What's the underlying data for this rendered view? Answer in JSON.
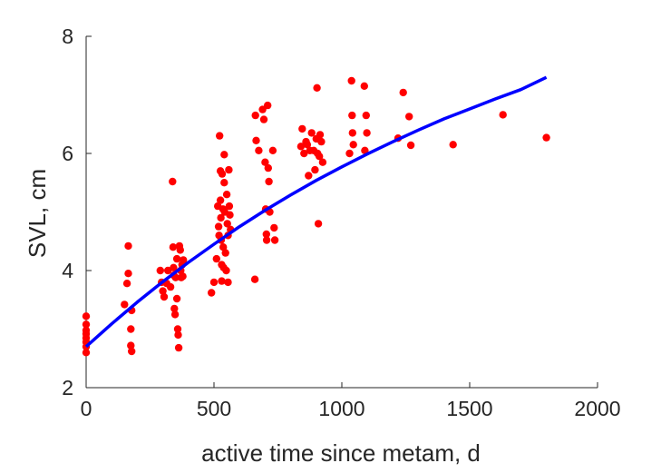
{
  "chart_data": {
    "type": "scatter",
    "xlabel": "active time since metam, d",
    "ylabel": "SVL, cm",
    "xlim": [
      0,
      2000
    ],
    "ylim": [
      2,
      8
    ],
    "xticks": [
      0,
      500,
      1000,
      1500,
      2000
    ],
    "yticks": [
      2,
      4,
      6,
      8
    ],
    "grid": false,
    "legend": "none",
    "colors": {
      "points": "#ff0000",
      "fit": "#0000ff",
      "axes": "#262626"
    },
    "series": [
      {
        "type": "scatter",
        "points": [
          [
            0,
            3.22
          ],
          [
            0,
            3.08
          ],
          [
            0,
            2.98
          ],
          [
            0,
            2.92
          ],
          [
            0,
            2.85
          ],
          [
            0,
            2.78
          ],
          [
            0,
            2.7
          ],
          [
            0,
            2.6
          ],
          [
            150,
            3.42
          ],
          [
            160,
            3.78
          ],
          [
            165,
            3.95
          ],
          [
            165,
            4.42
          ],
          [
            178,
            3.32
          ],
          [
            175,
            3.0
          ],
          [
            175,
            2.72
          ],
          [
            178,
            2.62
          ],
          [
            290,
            4.0
          ],
          [
            295,
            3.8
          ],
          [
            300,
            3.65
          ],
          [
            305,
            3.55
          ],
          [
            315,
            3.78
          ],
          [
            320,
            4.0
          ],
          [
            330,
            3.72
          ],
          [
            338,
            5.52
          ],
          [
            340,
            4.4
          ],
          [
            342,
            4.05
          ],
          [
            343,
            3.92
          ],
          [
            345,
            3.35
          ],
          [
            348,
            3.25
          ],
          [
            350,
            3.88
          ],
          [
            355,
            4.2
          ],
          [
            355,
            3.52
          ],
          [
            358,
            3.0
          ],
          [
            360,
            2.9
          ],
          [
            362,
            2.68
          ],
          [
            365,
            4.42
          ],
          [
            368,
            4.35
          ],
          [
            370,
            4.0
          ],
          [
            372,
            3.88
          ],
          [
            375,
            4.1
          ],
          [
            378,
            3.9
          ],
          [
            380,
            4.18
          ],
          [
            490,
            3.62
          ],
          [
            500,
            3.8
          ],
          [
            510,
            4.2
          ],
          [
            515,
            5.1
          ],
          [
            518,
            4.75
          ],
          [
            520,
            4.6
          ],
          [
            522,
            6.3
          ],
          [
            525,
            5.7
          ],
          [
            525,
            5.2
          ],
          [
            527,
            4.9
          ],
          [
            528,
            4.52
          ],
          [
            530,
            4.1
          ],
          [
            530,
            3.82
          ],
          [
            532,
            5.65
          ],
          [
            535,
            5.05
          ],
          [
            536,
            4.4
          ],
          [
            538,
            4.05
          ],
          [
            540,
            5.98
          ],
          [
            540,
            5.5
          ],
          [
            542,
            5.0
          ],
          [
            545,
            4.3
          ],
          [
            548,
            4.0
          ],
          [
            550,
            5.3
          ],
          [
            552,
            4.8
          ],
          [
            555,
            4.6
          ],
          [
            555,
            3.8
          ],
          [
            558,
            5.72
          ],
          [
            560,
            5.1
          ],
          [
            562,
            4.95
          ],
          [
            565,
            4.7
          ],
          [
            660,
            3.85
          ],
          [
            662,
            6.65
          ],
          [
            665,
            6.22
          ],
          [
            675,
            6.05
          ],
          [
            690,
            6.75
          ],
          [
            695,
            6.58
          ],
          [
            700,
            5.85
          ],
          [
            702,
            5.05
          ],
          [
            705,
            4.62
          ],
          [
            706,
            4.52
          ],
          [
            710,
            6.82
          ],
          [
            712,
            5.75
          ],
          [
            715,
            5.52
          ],
          [
            718,
            5.0
          ],
          [
            730,
            6.05
          ],
          [
            735,
            4.73
          ],
          [
            738,
            4.52
          ],
          [
            840,
            6.12
          ],
          [
            845,
            6.42
          ],
          [
            852,
            6.0
          ],
          [
            860,
            6.2
          ],
          [
            865,
            6.15
          ],
          [
            870,
            5.62
          ],
          [
            875,
            6.05
          ],
          [
            882,
            6.35
          ],
          [
            890,
            6.05
          ],
          [
            895,
            5.72
          ],
          [
            900,
            6.25
          ],
          [
            903,
            7.12
          ],
          [
            905,
            6.0
          ],
          [
            908,
            4.8
          ],
          [
            912,
            5.95
          ],
          [
            915,
            6.32
          ],
          [
            920,
            6.2
          ],
          [
            925,
            5.85
          ],
          [
            1030,
            6.0
          ],
          [
            1038,
            7.24
          ],
          [
            1040,
            6.65
          ],
          [
            1042,
            6.35
          ],
          [
            1045,
            6.15
          ],
          [
            1088,
            7.15
          ],
          [
            1090,
            6.05
          ],
          [
            1095,
            6.65
          ],
          [
            1098,
            6.35
          ],
          [
            1220,
            6.26
          ],
          [
            1240,
            7.04
          ],
          [
            1263,
            6.63
          ],
          [
            1270,
            6.14
          ],
          [
            1435,
            6.15
          ],
          [
            1630,
            6.66
          ],
          [
            1800,
            6.27
          ]
        ]
      },
      {
        "type": "line",
        "x": [
          0,
          100,
          200,
          300,
          400,
          500,
          600,
          700,
          800,
          900,
          1000,
          1100,
          1200,
          1300,
          1400,
          1500,
          1600,
          1700,
          1800
        ],
        "y": [
          2.7,
          3.09,
          3.46,
          3.81,
          4.14,
          4.45,
          4.75,
          5.03,
          5.29,
          5.54,
          5.77,
          5.99,
          6.2,
          6.4,
          6.59,
          6.76,
          6.93,
          7.09,
          7.3
        ]
      }
    ]
  }
}
